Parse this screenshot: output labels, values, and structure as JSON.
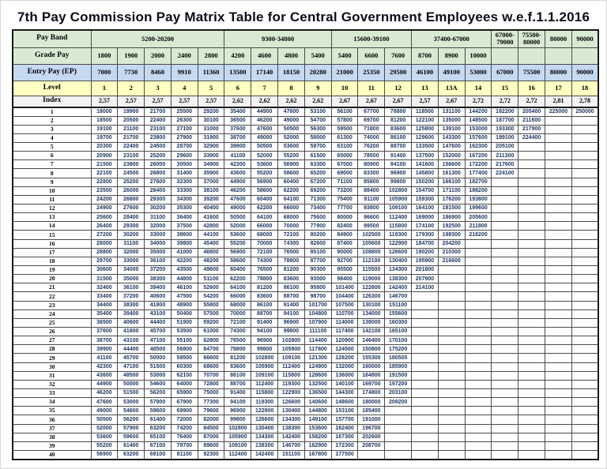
{
  "title": "7th Pay Commission Pay Matrix Table for Central Government Employees w.e.f.1.1.2016",
  "colors": {
    "band_bg": "#d9ead3",
    "entry_bg": "#c5d9f1",
    "level_bg": "#ffffc2",
    "index_bg": "#f2f2f2",
    "value_text": "#1f3864",
    "border": "#1a1a1a"
  },
  "header": {
    "row_labels": {
      "pay_band": "Pay Band",
      "grade_pay": "Grade Pay",
      "entry_pay": "Entry Pay (EP)",
      "level": "Level",
      "index": "Index"
    },
    "pay_bands": [
      {
        "label": "5200-20200",
        "span": 5
      },
      {
        "label": "9300-34800",
        "span": 4
      },
      {
        "label": "15600-39100",
        "span": 3
      },
      {
        "label": "37400-67000",
        "span": 3
      },
      {
        "label": "67000-79000",
        "span": 1
      },
      {
        "label": "75500-80000",
        "span": 1
      },
      {
        "label": "80000",
        "span": 1
      },
      {
        "label": "90000",
        "span": 1
      }
    ],
    "grade_pay": [
      "1800",
      "1900",
      "2000",
      "2400",
      "2800",
      "4200",
      "4600",
      "4800",
      "5400",
      "5400",
      "6600",
      "7600",
      "8700",
      "8900",
      "10000",
      "",
      "",
      "",
      ""
    ],
    "entry_pay": [
      "7000",
      "7730",
      "8460",
      "9910",
      "11360",
      "13500",
      "17140",
      "18150",
      "20280",
      "21000",
      "25350",
      "29500",
      "46100",
      "49100",
      "53000",
      "67000",
      "75500",
      "80000",
      "90000"
    ],
    "levels": [
      "1",
      "2",
      "3",
      "4",
      "5",
      "6",
      "7",
      "8",
      "9",
      "10",
      "11",
      "12",
      "13",
      "13A",
      "14",
      "15",
      "16",
      "17",
      "18"
    ],
    "index_values": [
      "2,57",
      "2,57",
      "2,57",
      "2,57",
      "2,57",
      "2,62",
      "2,62",
      "2,62",
      "2,62",
      "2,67",
      "2,67",
      "2,67",
      "2,57",
      "2,67",
      "2,72",
      "2,72",
      "2,72",
      "2,81",
      "2,78"
    ]
  },
  "matrix": {
    "rows": [
      {
        "index": "1",
        "values": [
          "18000",
          "19900",
          "21700",
          "25500",
          "29200",
          "35400",
          "44900",
          "47600",
          "53100",
          "56100",
          "67700",
          "78800",
          "118500",
          "131100",
          "144200",
          "182200",
          "205400",
          "225000",
          "250000"
        ]
      },
      {
        "index": "2",
        "values": [
          "18500",
          "20500",
          "22400",
          "26300",
          "30100",
          "36500",
          "46200",
          "49000",
          "54700",
          "57800",
          "69700",
          "81200",
          "122100",
          "135000",
          "148500",
          "187700",
          "211600",
          "",
          ""
        ]
      },
      {
        "index": "3",
        "values": [
          "19100",
          "21100",
          "23100",
          "27100",
          "31000",
          "37600",
          "47600",
          "50500",
          "56300",
          "59500",
          "71800",
          "83600",
          "125800",
          "139100",
          "153000",
          "193300",
          "217900",
          "",
          ""
        ]
      },
      {
        "index": "4",
        "values": [
          "19700",
          "21700",
          "23800",
          "27900",
          "31900",
          "38700",
          "49000",
          "52000",
          "58000",
          "61300",
          "74000",
          "86100",
          "129600",
          "143300",
          "157600",
          "199100",
          "224400",
          "",
          ""
        ]
      },
      {
        "index": "5",
        "values": [
          "20300",
          "22400",
          "24500",
          "28700",
          "32900",
          "39900",
          "50500",
          "53600",
          "59700",
          "63100",
          "76200",
          "88700",
          "133500",
          "147600",
          "162300",
          "205100",
          "",
          "",
          ""
        ]
      },
      {
        "index": "6",
        "values": [
          "20900",
          "23100",
          "25200",
          "29600",
          "33900",
          "41100",
          "52000",
          "55200",
          "61500",
          "65000",
          "78500",
          "91400",
          "137500",
          "152000",
          "167200",
          "211300",
          "",
          "",
          ""
        ]
      },
      {
        "index": "7",
        "values": [
          "21500",
          "23800",
          "26000",
          "30500",
          "34900",
          "42300",
          "53600",
          "56900",
          "63300",
          "67000",
          "80900",
          "94100",
          "141600",
          "156600",
          "172200",
          "217600",
          "",
          "",
          ""
        ]
      },
      {
        "index": "8",
        "values": [
          "22100",
          "24500",
          "26800",
          "31400",
          "35900",
          "43600",
          "55200",
          "58600",
          "65200",
          "69000",
          "83300",
          "96900",
          "145800",
          "161300",
          "177400",
          "224100",
          "",
          "",
          ""
        ]
      },
      {
        "index": "9",
        "values": [
          "22800",
          "25200",
          "27600",
          "32300",
          "37000",
          "44900",
          "56900",
          "60400",
          "67200",
          "71100",
          "85800",
          "99800",
          "150200",
          "166100",
          "182700",
          "",
          "",
          "",
          ""
        ]
      },
      {
        "index": "10",
        "values": [
          "23500",
          "26000",
          "28400",
          "33300",
          "38100",
          "46200",
          "58600",
          "62200",
          "69200",
          "73200",
          "88400",
          "102800",
          "154700",
          "171100",
          "188200",
          "",
          "",
          "",
          ""
        ]
      },
      {
        "index": "11",
        "values": [
          "24200",
          "26800",
          "29300",
          "34300",
          "39200",
          "47600",
          "60400",
          "64100",
          "71300",
          "75400",
          "91100",
          "105900",
          "159300",
          "176200",
          "193800",
          "",
          "",
          "",
          ""
        ]
      },
      {
        "index": "12",
        "values": [
          "24900",
          "27600",
          "30200",
          "35300",
          "40400",
          "49000",
          "62200",
          "66000",
          "73400",
          "77700",
          "93800",
          "109100",
          "164100",
          "181500",
          "199600",
          "",
          "",
          "",
          ""
        ]
      },
      {
        "index": "13",
        "values": [
          "25600",
          "28400",
          "31100",
          "36400",
          "41600",
          "50500",
          "64100",
          "68000",
          "75600",
          "80000",
          "96600",
          "112400",
          "169000",
          "186900",
          "205600",
          "",
          "",
          "",
          ""
        ]
      },
      {
        "index": "14",
        "values": [
          "26400",
          "29300",
          "32000",
          "37500",
          "42800",
          "52000",
          "66000",
          "70000",
          "77900",
          "82400",
          "99500",
          "115800",
          "174100",
          "192500",
          "211800",
          "",
          "",
          "",
          ""
        ]
      },
      {
        "index": "15",
        "values": [
          "27200",
          "30200",
          "33000",
          "38600",
          "44100",
          "53600",
          "68000",
          "72100",
          "80200",
          "84900",
          "102500",
          "119300",
          "179300",
          "198300",
          "218200",
          "",
          "",
          "",
          ""
        ]
      },
      {
        "index": "16",
        "values": [
          "28000",
          "31100",
          "34000",
          "39800",
          "45400",
          "55200",
          "70000",
          "74300",
          "82600",
          "87400",
          "105600",
          "122900",
          "184700",
          "204200",
          "",
          "",
          "",
          "",
          ""
        ]
      },
      {
        "index": "17",
        "values": [
          "28800",
          "32000",
          "35000",
          "41000",
          "46800",
          "56900",
          "72100",
          "76500",
          "85100",
          "90000",
          "108800",
          "126600",
          "190200",
          "210300",
          "",
          "",
          "",
          "",
          ""
        ]
      },
      {
        "index": "18",
        "values": [
          "29700",
          "33000",
          "36100",
          "42200",
          "48200",
          "58600",
          "74300",
          "78800",
          "87700",
          "92700",
          "112100",
          "130400",
          "195900",
          "216600",
          "",
          "",
          "",
          "",
          ""
        ]
      },
      {
        "index": "19",
        "values": [
          "30600",
          "34000",
          "37200",
          "43500",
          "49600",
          "60400",
          "76500",
          "81200",
          "90300",
          "95500",
          "115500",
          "134300",
          "201800",
          "",
          "",
          "",
          "",
          "",
          ""
        ]
      },
      {
        "index": "20",
        "values": [
          "31500",
          "35000",
          "38300",
          "44800",
          "51100",
          "62200",
          "78800",
          "83600",
          "93000",
          "98400",
          "119000",
          "138300",
          "207900",
          "",
          "",
          "",
          "",
          "",
          ""
        ]
      },
      {
        "index": "21",
        "values": [
          "32400",
          "36100",
          "39400",
          "46100",
          "52600",
          "64100",
          "81200",
          "86100",
          "95800",
          "101400",
          "122600",
          "142400",
          "214100",
          "",
          "",
          "",
          "",
          "",
          ""
        ]
      },
      {
        "index": "22",
        "values": [
          "33400",
          "37200",
          "40600",
          "47500",
          "54200",
          "66000",
          "83600",
          "88700",
          "98700",
          "104400",
          "126300",
          "146700",
          "",
          "",
          "",
          "",
          "",
          "",
          ""
        ]
      },
      {
        "index": "23",
        "values": [
          "34400",
          "38300",
          "41800",
          "48900",
          "55800",
          "68000",
          "86100",
          "91400",
          "101700",
          "107500",
          "130100",
          "151100",
          "",
          "",
          "",
          "",
          "",
          "",
          ""
        ]
      },
      {
        "index": "24",
        "values": [
          "35400",
          "39400",
          "43100",
          "50400",
          "57500",
          "70000",
          "88700",
          "94100",
          "104800",
          "110700",
          "134000",
          "155600",
          "",
          "",
          "",
          "",
          "",
          "",
          ""
        ]
      },
      {
        "index": "25",
        "values": [
          "36500",
          "40600",
          "44400",
          "51900",
          "59200",
          "72100",
          "91400",
          "96900",
          "107900",
          "114000",
          "138000",
          "160300",
          "",
          "",
          "",
          "",
          "",
          "",
          ""
        ]
      },
      {
        "index": "26",
        "values": [
          "37600",
          "41800",
          "45700",
          "53500",
          "61000",
          "74300",
          "94100",
          "99800",
          "111100",
          "117400",
          "142100",
          "165100",
          "",
          "",
          "",
          "",
          "",
          "",
          ""
        ]
      },
      {
        "index": "27",
        "values": [
          "38700",
          "43100",
          "47100",
          "55100",
          "62800",
          "76500",
          "96900",
          "102800",
          "114400",
          "120900",
          "146400",
          "170100",
          "",
          "",
          "",
          "",
          "",
          "",
          ""
        ]
      },
      {
        "index": "28",
        "values": [
          "39900",
          "44400",
          "48500",
          "56800",
          "64700",
          "78800",
          "99800",
          "105900",
          "117800",
          "124500",
          "150800",
          "175200",
          "",
          "",
          "",
          "",
          "",
          "",
          ""
        ]
      },
      {
        "index": "29",
        "values": [
          "41100",
          "45700",
          "50000",
          "58500",
          "66600",
          "81200",
          "102800",
          "109100",
          "121300",
          "128200",
          "155300",
          "180500",
          "",
          "",
          "",
          "",
          "",
          "",
          ""
        ]
      },
      {
        "index": "30",
        "values": [
          "42300",
          "47100",
          "51500",
          "60300",
          "68600",
          "83600",
          "105900",
          "112400",
          "124900",
          "132000",
          "160000",
          "185900",
          "",
          "",
          "",
          "",
          "",
          "",
          ""
        ]
      },
      {
        "index": "31",
        "values": [
          "43600",
          "48500",
          "53000",
          "62100",
          "70700",
          "86100",
          "109100",
          "115800",
          "128600",
          "136000",
          "164800",
          "191500",
          "",
          "",
          "",
          "",
          "",
          "",
          ""
        ]
      },
      {
        "index": "32",
        "values": [
          "44900",
          "50000",
          "54600",
          "64000",
          "72800",
          "88700",
          "112400",
          "119300",
          "132500",
          "140100",
          "169700",
          "197200",
          "",
          "",
          "",
          "",
          "",
          "",
          ""
        ]
      },
      {
        "index": "33",
        "values": [
          "46200",
          "51500",
          "56200",
          "65900",
          "75000",
          "91400",
          "115800",
          "122900",
          "136500",
          "144300",
          "174800",
          "203100",
          "",
          "",
          "",
          "",
          "",
          "",
          ""
        ]
      },
      {
        "index": "34",
        "values": [
          "47600",
          "53000",
          "57900",
          "67900",
          "77300",
          "94100",
          "119300",
          "126600",
          "140600",
          "148600",
          "180000",
          "209200",
          "",
          "",
          "",
          "",
          "",
          "",
          ""
        ]
      },
      {
        "index": "35",
        "values": [
          "49000",
          "54600",
          "59600",
          "69900",
          "79600",
          "96900",
          "122900",
          "130400",
          "144800",
          "153100",
          "185400",
          "",
          "",
          "",
          "",
          "",
          "",
          "",
          ""
        ]
      },
      {
        "index": "36",
        "values": [
          "50500",
          "56200",
          "61400",
          "72000",
          "82000",
          "99800",
          "126600",
          "134300",
          "149100",
          "157700",
          "191000",
          "",
          "",
          "",
          "",
          "",
          "",
          "",
          ""
        ]
      },
      {
        "index": "37",
        "values": [
          "52000",
          "57900",
          "63200",
          "74200",
          "84500",
          "102800",
          "130400",
          "138300",
          "153600",
          "162400",
          "196700",
          "",
          "",
          "",
          "",
          "",
          "",
          "",
          ""
        ]
      },
      {
        "index": "38",
        "values": [
          "53600",
          "59600",
          "65100",
          "76400",
          "87000",
          "105900",
          "134300",
          "142400",
          "158200",
          "167300",
          "202600",
          "",
          "",
          "",
          "",
          "",
          "",
          "",
          ""
        ]
      },
      {
        "index": "39",
        "values": [
          "55200",
          "61400",
          "67100",
          "78700",
          "89600",
          "109100",
          "138300",
          "146700",
          "162900",
          "172300",
          "208700",
          "",
          "",
          "",
          "",
          "",
          "",
          "",
          ""
        ]
      },
      {
        "index": "40",
        "values": [
          "56900",
          "63200",
          "69100",
          "81100",
          "92300",
          "112400",
          "142400",
          "151100",
          "167800",
          "177500",
          "",
          "",
          "",
          "",
          "",
          "",
          "",
          "",
          ""
        ]
      }
    ]
  }
}
